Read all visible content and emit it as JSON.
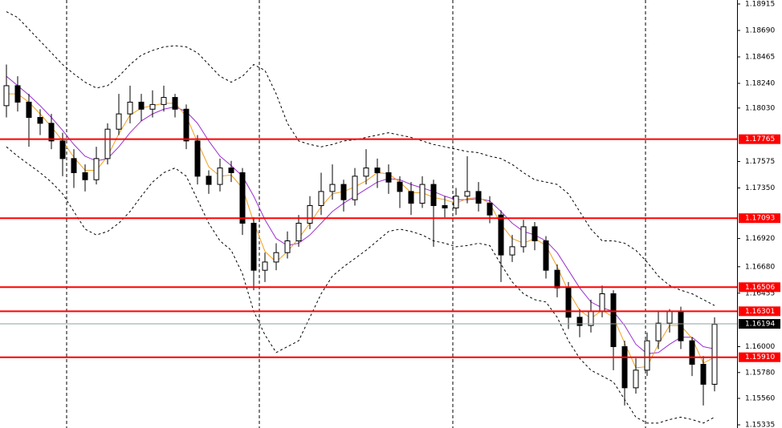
{
  "chart_data": {
    "type": "candlestick",
    "ylim": [
      1.15308,
      1.18949
    ],
    "yticks": [
      {
        "value": 1.18915,
        "label": "1.18915"
      },
      {
        "value": 1.1869,
        "label": "1.18690"
      },
      {
        "value": 1.18465,
        "label": "1.18465"
      },
      {
        "value": 1.1824,
        "label": "1.18240"
      },
      {
        "value": 1.1803,
        "label": "1.18030"
      },
      {
        "value": 1.17575,
        "label": "1.17575"
      },
      {
        "value": 1.1735,
        "label": "1.17350"
      },
      {
        "value": 1.1692,
        "label": "1.16920"
      },
      {
        "value": 1.1668,
        "label": "1.16680"
      },
      {
        "value": 1.16455,
        "label": "1.16455"
      },
      {
        "value": 1.16,
        "label": "1.16000"
      },
      {
        "value": 1.1578,
        "label": "1.15780"
      },
      {
        "value": 1.1556,
        "label": "1.15560"
      },
      {
        "value": 1.15335,
        "label": "1.15335"
      }
    ],
    "open": [
      1.1805,
      1.1822,
      1.1808,
      1.1795,
      1.179,
      1.1775,
      1.176,
      1.1748,
      1.1742,
      1.176,
      1.1785,
      1.1798,
      1.1808,
      1.1802,
      1.1806,
      1.1812,
      1.1802,
      1.1775,
      1.1745,
      1.1738,
      1.1752,
      1.1748,
      1.1705,
      1.1665,
      1.1672,
      1.168,
      1.169,
      1.1705,
      1.172,
      1.1732,
      1.1738,
      1.1725,
      1.1745,
      1.1752,
      1.1748,
      1.174,
      1.1732,
      1.1722,
      1.1738,
      1.172,
      1.1718,
      1.1728,
      1.1732,
      1.1722,
      1.1712,
      1.1678,
      1.1685,
      1.1702,
      1.169,
      1.1665,
      1.165,
      1.1625,
      1.1618,
      1.163,
      1.1645,
      1.16,
      1.1565,
      1.158,
      1.1605,
      1.162,
      1.163,
      1.1605,
      1.1585,
      1.1568
    ],
    "high": [
      1.184,
      1.183,
      1.1815,
      1.1802,
      1.1798,
      1.1782,
      1.1768,
      1.1755,
      1.177,
      1.179,
      1.1815,
      1.1822,
      1.1815,
      1.1818,
      1.1822,
      1.1815,
      1.1806,
      1.178,
      1.175,
      1.176,
      1.1758,
      1.1752,
      1.171,
      1.168,
      1.1688,
      1.1698,
      1.1712,
      1.1728,
      1.1748,
      1.1755,
      1.1742,
      1.1752,
      1.1768,
      1.176,
      1.1755,
      1.1745,
      1.174,
      1.1745,
      1.1742,
      1.1728,
      1.1735,
      1.1762,
      1.174,
      1.1728,
      1.1716,
      1.1695,
      1.1708,
      1.1706,
      1.1694,
      1.167,
      1.1655,
      1.1632,
      1.164,
      1.1652,
      1.1648,
      1.1605,
      1.159,
      1.1612,
      1.163,
      1.1632,
      1.1634,
      1.1608,
      1.1592,
      1.1625
    ],
    "low": [
      1.1795,
      1.18,
      1.177,
      1.178,
      1.1768,
      1.1745,
      1.1735,
      1.1732,
      1.1738,
      1.1755,
      1.178,
      1.179,
      1.1792,
      1.1795,
      1.18,
      1.1795,
      1.1768,
      1.1738,
      1.173,
      1.1732,
      1.174,
      1.1695,
      1.1648,
      1.1655,
      1.1665,
      1.1675,
      1.1685,
      1.17,
      1.1712,
      1.1725,
      1.1715,
      1.172,
      1.1738,
      1.1735,
      1.173,
      1.1718,
      1.1712,
      1.1718,
      1.1685,
      1.171,
      1.1712,
      1.1722,
      1.1715,
      1.1705,
      1.1655,
      1.1672,
      1.168,
      1.1682,
      1.1658,
      1.1642,
      1.1615,
      1.1608,
      1.1612,
      1.1625,
      1.158,
      1.155,
      1.156,
      1.1575,
      1.1598,
      1.1612,
      1.1598,
      1.1575,
      1.155,
      1.1562
    ],
    "close": [
      1.1822,
      1.1808,
      1.1795,
      1.179,
      1.1775,
      1.176,
      1.1748,
      1.1742,
      1.176,
      1.1785,
      1.1798,
      1.1808,
      1.1802,
      1.1806,
      1.1812,
      1.1802,
      1.1775,
      1.1745,
      1.1738,
      1.1752,
      1.1748,
      1.1705,
      1.1665,
      1.1672,
      1.168,
      1.169,
      1.1705,
      1.172,
      1.1732,
      1.1738,
      1.1725,
      1.1745,
      1.1752,
      1.1748,
      1.174,
      1.1732,
      1.1722,
      1.1738,
      1.172,
      1.1718,
      1.1728,
      1.1732,
      1.1722,
      1.1712,
      1.1678,
      1.1685,
      1.1702,
      1.169,
      1.1665,
      1.165,
      1.1625,
      1.1618,
      1.163,
      1.1645,
      1.16,
      1.1565,
      1.158,
      1.1605,
      1.162,
      1.163,
      1.1605,
      1.1585,
      1.1568,
      1.1619
    ],
    "lines": [
      {
        "color": "#000000",
        "dashed": true,
        "values": [
          1.1885,
          1.188,
          1.187,
          1.186,
          1.185,
          1.184,
          1.1832,
          1.1825,
          1.182,
          1.1822,
          1.183,
          1.184,
          1.1848,
          1.1852,
          1.1855,
          1.1856,
          1.1855,
          1.185,
          1.184,
          1.183,
          1.1825,
          1.183,
          1.184,
          1.1835,
          1.1815,
          1.179,
          1.1775,
          1.1772,
          1.177,
          1.1772,
          1.1775,
          1.1776,
          1.1778,
          1.178,
          1.1782,
          1.178,
          1.1778,
          1.1775,
          1.1772,
          1.177,
          1.1768,
          1.1766,
          1.1765,
          1.1762,
          1.176,
          1.1755,
          1.1748,
          1.1742,
          1.174,
          1.1738,
          1.173,
          1.1715,
          1.17,
          1.169,
          1.169,
          1.1688,
          1.1682,
          1.1672,
          1.166,
          1.1652,
          1.1648,
          1.1645,
          1.164,
          1.1635
        ]
      },
      {
        "color": "#000000",
        "dashed": true,
        "values": [
          1.177,
          1.1762,
          1.1755,
          1.1748,
          1.174,
          1.173,
          1.1715,
          1.17,
          1.1695,
          1.1698,
          1.1705,
          1.1715,
          1.1728,
          1.174,
          1.1748,
          1.1752,
          1.1745,
          1.1725,
          1.1705,
          1.169,
          1.1682,
          1.1662,
          1.163,
          1.161,
          1.1595,
          1.16,
          1.1605,
          1.1625,
          1.1645,
          1.166,
          1.1668,
          1.1675,
          1.1682,
          1.169,
          1.1698,
          1.17,
          1.1698,
          1.1695,
          1.169,
          1.1688,
          1.1685,
          1.1686,
          1.1688,
          1.1686,
          1.167,
          1.1655,
          1.1645,
          1.164,
          1.1638,
          1.1625,
          1.1605,
          1.159,
          1.158,
          1.1575,
          1.157,
          1.1555,
          1.154,
          1.1535,
          1.1535,
          1.1538,
          1.154,
          1.1538,
          1.1535,
          1.154
        ]
      },
      {
        "color": "#9b30d0",
        "dashed": false,
        "values": [
          1.183,
          1.1822,
          1.1814,
          1.1805,
          1.1795,
          1.1784,
          1.1772,
          1.1762,
          1.1758,
          1.176,
          1.177,
          1.1782,
          1.1792,
          1.1798,
          1.1802,
          1.1804,
          1.18,
          1.179,
          1.1775,
          1.1762,
          1.1754,
          1.1745,
          1.1728,
          1.1708,
          1.1692,
          1.1686,
          1.1688,
          1.1695,
          1.1705,
          1.1715,
          1.1722,
          1.1728,
          1.1734,
          1.174,
          1.1743,
          1.1742,
          1.1738,
          1.1735,
          1.1732,
          1.1728,
          1.1725,
          1.1725,
          1.1726,
          1.1724,
          1.1715,
          1.1705,
          1.1698,
          1.1695,
          1.169,
          1.168,
          1.1665,
          1.165,
          1.1638,
          1.1633,
          1.163,
          1.1618,
          1.1602,
          1.1594,
          1.1595,
          1.1602,
          1.1608,
          1.1608,
          1.16,
          1.1598
        ]
      },
      {
        "color": "#f0a020",
        "dashed": false,
        "values": [
          1.1815,
          1.1815,
          1.1808,
          1.1798,
          1.1787,
          1.1775,
          1.1761,
          1.175,
          1.175,
          1.1762,
          1.1781,
          1.1797,
          1.1803,
          1.1805,
          1.1807,
          1.1807,
          1.1796,
          1.1774,
          1.1753,
          1.1745,
          1.1746,
          1.1735,
          1.1706,
          1.1681,
          1.1672,
          1.1681,
          1.1692,
          1.1705,
          1.1719,
          1.173,
          1.1732,
          1.1736,
          1.1741,
          1.1748,
          1.1747,
          1.174,
          1.1731,
          1.1731,
          1.1727,
          1.1725,
          1.1722,
          1.1726,
          1.1727,
          1.1722,
          1.1704,
          1.1692,
          1.1688,
          1.1692,
          1.1686,
          1.1668,
          1.1647,
          1.1631,
          1.1624,
          1.1631,
          1.1625,
          1.1603,
          1.1582,
          1.1583,
          1.1602,
          1.1618,
          1.1618,
          1.1607,
          1.1586,
          1.1591
        ]
      }
    ],
    "levels": [
      {
        "value": 1.17765,
        "label": "1.17765"
      },
      {
        "value": 1.17093,
        "label": "1.17093"
      },
      {
        "value": 1.16506,
        "label": "1.16506"
      },
      {
        "value": 1.16301,
        "label": "1.16301"
      },
      {
        "value": 1.1591,
        "label": "1.15910"
      }
    ],
    "level_color": "#ff0000",
    "current": {
      "value": 1.16194,
      "label": "1.16194"
    }
  }
}
